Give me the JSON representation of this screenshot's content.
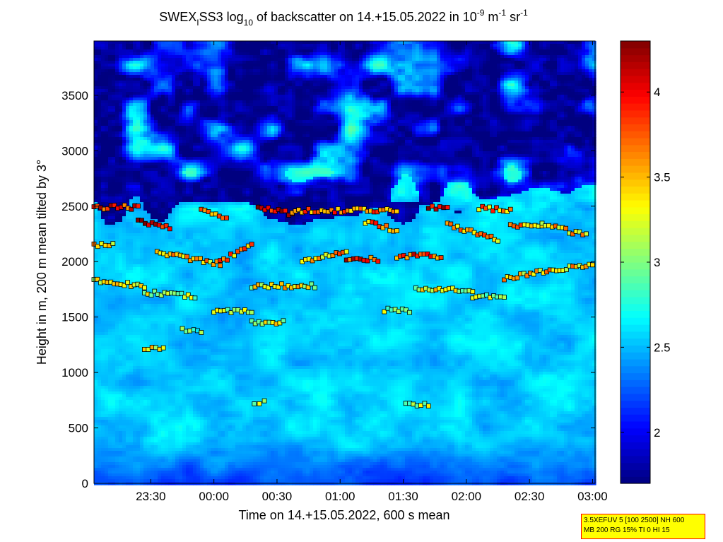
{
  "chart_data": {
    "type": "heatmap",
    "title": {
      "prefix": "SWEX",
      "prefix_sub": "I",
      "mid": "SS3 log",
      "mid_sub": "10",
      "tail": " of backscatter on 14.+15.05.2022 in 10",
      "unit_exp1": "-9",
      "unit_m": " m",
      "unit_exp2": "-1",
      "unit_sr": " sr",
      "unit_exp3": "-1"
    },
    "xlabel": "Time on 14.+15.05.2022, 600 s mean",
    "ylabel": "Height in m, 200 m mean tilted by 3°",
    "x_ticks": [
      {
        "label": "23:30",
        "h": 23.5
      },
      {
        "label": "00:00",
        "h": 24.0
      },
      {
        "label": "00:30",
        "h": 24.5
      },
      {
        "label": "01:00",
        "h": 25.0
      },
      {
        "label": "01:30",
        "h": 25.5
      },
      {
        "label": "02:00",
        "h": 26.0
      },
      {
        "label": "02:30",
        "h": 26.5
      },
      {
        "label": "03:00",
        "h": 27.0
      }
    ],
    "xlim_hours": [
      23.05,
      27.02
    ],
    "y_ticks": [
      "0",
      "500",
      "1000",
      "1500",
      "2000",
      "2500",
      "3000",
      "3500"
    ],
    "ylim": [
      0,
      3990
    ],
    "colorbar": {
      "range": [
        1.7,
        4.3
      ],
      "ticks": [
        "2",
        "2.5",
        "3",
        "3.5",
        "4"
      ],
      "colormap": "jet"
    },
    "layers": {
      "low_backscatter_above_m": 2550,
      "boundary_layer_top_m": 2450,
      "near_surface_strong_below_m": 400
    },
    "marker_tracks": [
      {
        "from": 23.05,
        "to": 23.4,
        "height": [
          2490,
          2490
        ],
        "value": 3.9
      },
      {
        "from": 23.4,
        "to": 23.65,
        "height": [
          2370,
          2300
        ],
        "value": 4.1
      },
      {
        "from": 23.9,
        "to": 24.1,
        "height": [
          2470,
          2380
        ],
        "value": 3.8
      },
      {
        "from": 24.35,
        "to": 24.62,
        "height": [
          2490,
          2430
        ],
        "value": 4.0
      },
      {
        "from": 24.62,
        "to": 25.45,
        "height": [
          2460,
          2460
        ],
        "value": 3.7
      },
      {
        "from": 25.2,
        "to": 25.45,
        "height": [
          2360,
          2280
        ],
        "value": 3.6
      },
      {
        "from": 25.7,
        "to": 25.85,
        "height": [
          2480,
          2480
        ],
        "value": 4.1
      },
      {
        "from": 25.85,
        "to": 26.25,
        "height": [
          2330,
          2200
        ],
        "value": 3.5
      },
      {
        "from": 26.1,
        "to": 26.35,
        "height": [
          2480,
          2460
        ],
        "value": 3.6
      },
      {
        "from": 26.35,
        "to": 26.6,
        "height": [
          2320,
          2320
        ],
        "value": 3.5
      },
      {
        "from": 26.6,
        "to": 26.95,
        "height": [
          2330,
          2240
        ],
        "value": 3.4
      },
      {
        "from": 23.05,
        "to": 23.2,
        "height": [
          2150,
          2150
        ],
        "value": 3.4
      },
      {
        "from": 23.55,
        "to": 24.05,
        "height": [
          2080,
          1980
        ],
        "value": 3.5
      },
      {
        "from": 24.05,
        "to": 24.3,
        "height": [
          2000,
          2150
        ],
        "value": 3.6
      },
      {
        "from": 24.7,
        "to": 25.05,
        "height": [
          2000,
          2080
        ],
        "value": 3.5
      },
      {
        "from": 25.05,
        "to": 25.3,
        "height": [
          2020,
          2020
        ],
        "value": 3.9
      },
      {
        "from": 25.45,
        "to": 25.8,
        "height": [
          2050,
          2050
        ],
        "value": 3.8
      },
      {
        "from": 26.3,
        "to": 27.0,
        "height": [
          1850,
          1980
        ],
        "value": 3.4
      },
      {
        "from": 23.05,
        "to": 23.45,
        "height": [
          1830,
          1780
        ],
        "value": 3.2
      },
      {
        "from": 23.45,
        "to": 23.85,
        "height": [
          1720,
          1690
        ],
        "value": 3.1
      },
      {
        "from": 24.3,
        "to": 24.8,
        "height": [
          1780,
          1780
        ],
        "value": 3.3
      },
      {
        "from": 25.6,
        "to": 26.05,
        "height": [
          1760,
          1740
        ],
        "value": 3.2
      },
      {
        "from": 26.05,
        "to": 26.3,
        "height": [
          1680,
          1690
        ],
        "value": 3.1
      },
      {
        "from": 24.0,
        "to": 24.3,
        "height": [
          1540,
          1560
        ],
        "value": 3.0
      },
      {
        "from": 24.3,
        "to": 24.55,
        "height": [
          1450,
          1450
        ],
        "value": 3.2
      },
      {
        "from": 25.35,
        "to": 25.55,
        "height": [
          1560,
          1560
        ],
        "value": 3.0
      },
      {
        "from": 23.75,
        "to": 23.9,
        "height": [
          1380,
          1380
        ],
        "value": 2.9
      },
      {
        "from": 23.45,
        "to": 23.6,
        "height": [
          1220,
          1220
        ],
        "value": 3.2
      },
      {
        "from": 25.52,
        "to": 25.7,
        "height": [
          720,
          700
        ],
        "value": 3.1
      },
      {
        "from": 24.32,
        "to": 24.4,
        "height": [
          730,
          730
        ],
        "value": 3.1
      }
    ]
  },
  "footnote": {
    "line1": "3.5XEFUV 5 [100 2500] NH 600",
    "line2": "MB 200 RG 15% TI 0 HI 15"
  }
}
